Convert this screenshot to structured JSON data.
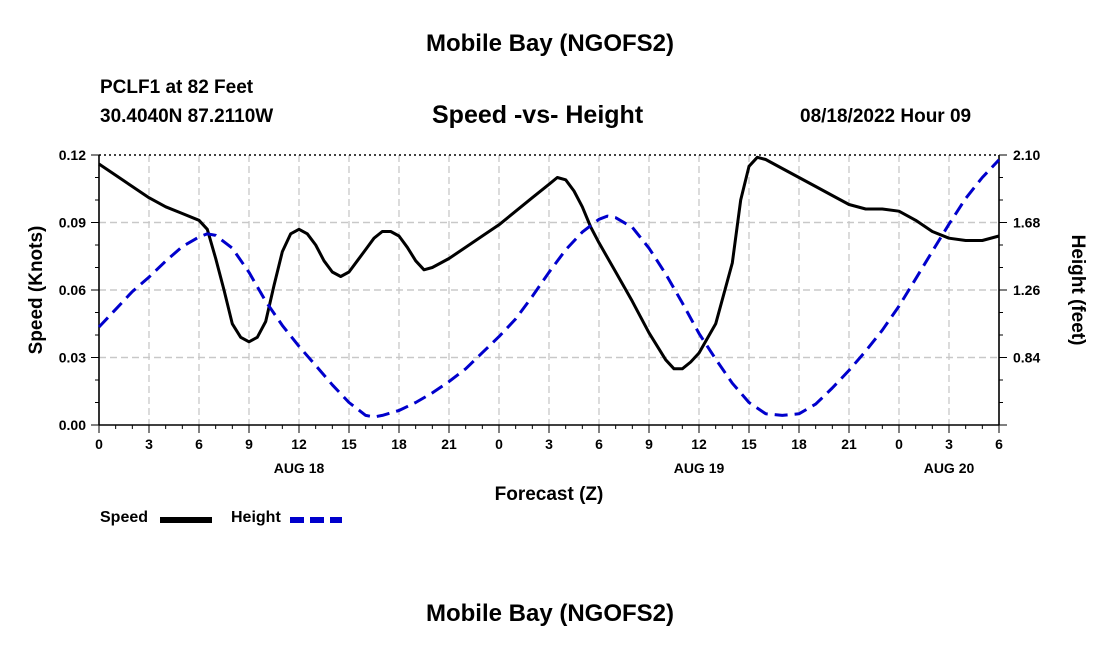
{
  "page": {
    "title": "Mobile Bay (NGOFS2)",
    "footer_title": "Mobile Bay (NGOFS2)",
    "station": "PCLF1 at 82 Feet",
    "coords": "30.4040N  87.2110W",
    "plot_title": "Speed -vs- Height",
    "datetime": "08/18/2022 Hour 09"
  },
  "chart_data": {
    "type": "line",
    "title": "Speed -vs- Height",
    "xlabel": "Forecast (Z)",
    "x_ticks": [
      "0",
      "3",
      "6",
      "9",
      "12",
      "15",
      "18",
      "21",
      "0",
      "3",
      "6",
      "9",
      "12",
      "15",
      "18",
      "21",
      "0",
      "3",
      "6"
    ],
    "date_labels": [
      {
        "label": "AUG 18",
        "hour": 12
      },
      {
        "label": "AUG 19",
        "hour": 36
      },
      {
        "label": "AUG 20",
        "hour": 51
      }
    ],
    "xlim": [
      0,
      54
    ],
    "y_left": {
      "label": "Speed (Knots)",
      "ticks": [
        "0.00",
        "0.03",
        "0.06",
        "0.09",
        "0.12"
      ],
      "range": [
        0,
        0.12
      ]
    },
    "y_right": {
      "label": "Height (feet)",
      "ticks": [
        "0.84",
        "1.26",
        "1.68",
        "2.10"
      ],
      "range": [
        0.42,
        2.1
      ]
    },
    "grid": true,
    "legend_position": "bottom-left",
    "series": [
      {
        "name": "Speed",
        "axis": "left",
        "color": "#000000",
        "style": "solid",
        "x": [
          0,
          1,
          2,
          3,
          4,
          5,
          6,
          6.5,
          7,
          7.5,
          8,
          8.5,
          9,
          9.5,
          10,
          10.5,
          11,
          11.5,
          12,
          12.5,
          13,
          13.5,
          14,
          14.5,
          15,
          15.5,
          16,
          16.5,
          17,
          17.5,
          18,
          18.5,
          19,
          19.5,
          20,
          20.5,
          21,
          22,
          23,
          24,
          25,
          26,
          27,
          27.5,
          28,
          28.5,
          29,
          29.5,
          30,
          31,
          32,
          33,
          34,
          34.5,
          35,
          35.5,
          36,
          37,
          38,
          38.5,
          39,
          39.5,
          40,
          41,
          42,
          43,
          44,
          45,
          46,
          47,
          48,
          49,
          50,
          51,
          52,
          53,
          54
        ],
        "y": [
          0.116,
          0.111,
          0.106,
          0.101,
          0.097,
          0.094,
          0.091,
          0.087,
          0.074,
          0.06,
          0.045,
          0.039,
          0.037,
          0.039,
          0.046,
          0.062,
          0.077,
          0.085,
          0.087,
          0.085,
          0.08,
          0.073,
          0.068,
          0.066,
          0.068,
          0.073,
          0.078,
          0.083,
          0.086,
          0.086,
          0.084,
          0.079,
          0.073,
          0.069,
          0.07,
          0.072,
          0.074,
          0.079,
          0.084,
          0.089,
          0.095,
          0.101,
          0.107,
          0.11,
          0.109,
          0.104,
          0.097,
          0.088,
          0.081,
          0.068,
          0.055,
          0.041,
          0.029,
          0.025,
          0.025,
          0.028,
          0.032,
          0.045,
          0.072,
          0.1,
          0.115,
          0.119,
          0.118,
          0.114,
          0.11,
          0.106,
          0.102,
          0.098,
          0.096,
          0.096,
          0.095,
          0.091,
          0.086,
          0.083,
          0.082,
          0.082,
          0.084
        ]
      },
      {
        "name": "Height",
        "axis": "right",
        "color": "#0000cc",
        "style": "dashed",
        "x": [
          0,
          1,
          2,
          3,
          4,
          5,
          6,
          6.5,
          7,
          8,
          9,
          10,
          11,
          12,
          13,
          14,
          15,
          16,
          16.5,
          17,
          18,
          19,
          20,
          21,
          22,
          23,
          24,
          25,
          26,
          27,
          28,
          29,
          30,
          30.5,
          31,
          32,
          33,
          34,
          35,
          36,
          37,
          38,
          39,
          40,
          41,
          42,
          43,
          44,
          45,
          46,
          47,
          48,
          49,
          50,
          51,
          52,
          53,
          54
        ],
        "y": [
          1.03,
          1.14,
          1.25,
          1.34,
          1.44,
          1.53,
          1.59,
          1.61,
          1.6,
          1.52,
          1.37,
          1.19,
          1.04,
          0.91,
          0.79,
          0.67,
          0.56,
          0.48,
          0.47,
          0.48,
          0.51,
          0.56,
          0.62,
          0.69,
          0.77,
          0.87,
          0.97,
          1.08,
          1.22,
          1.37,
          1.51,
          1.62,
          1.7,
          1.72,
          1.71,
          1.65,
          1.52,
          1.36,
          1.18,
          0.99,
          0.83,
          0.68,
          0.56,
          0.49,
          0.48,
          0.49,
          0.55,
          0.65,
          0.76,
          0.88,
          1.01,
          1.16,
          1.33,
          1.5,
          1.67,
          1.83,
          1.96,
          2.07
        ]
      }
    ]
  }
}
